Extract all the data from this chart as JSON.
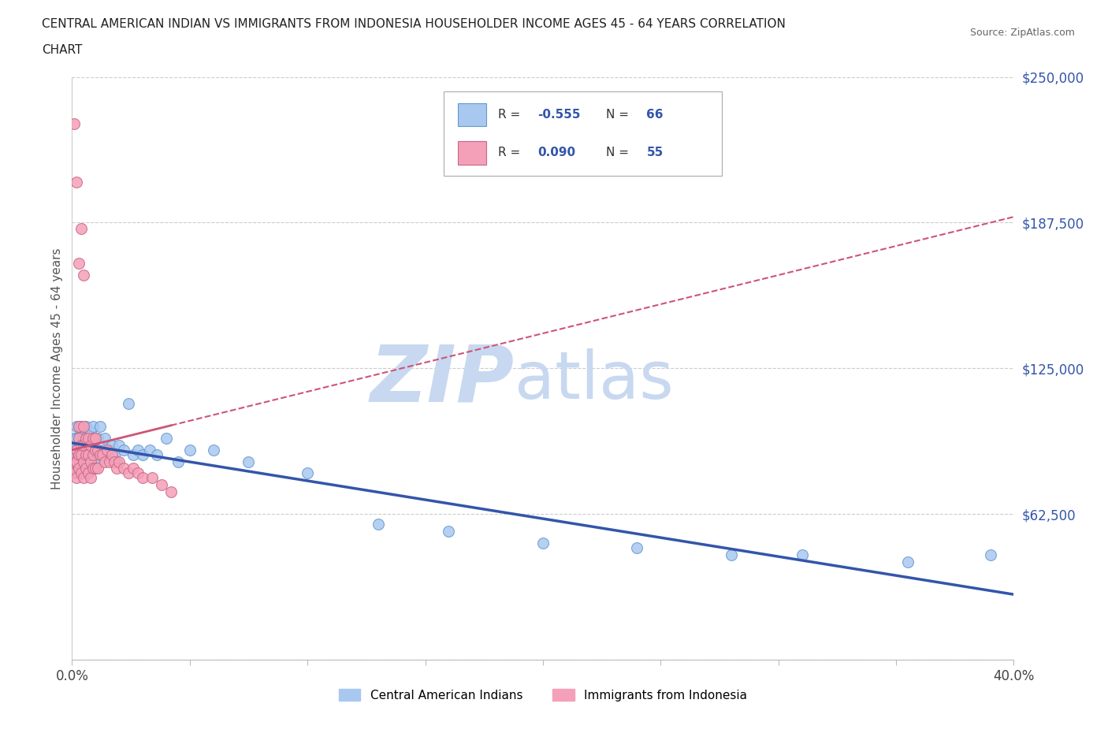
{
  "title_line1": "CENTRAL AMERICAN INDIAN VS IMMIGRANTS FROM INDONESIA HOUSEHOLDER INCOME AGES 45 - 64 YEARS CORRELATION",
  "title_line2": "CHART",
  "source": "Source: ZipAtlas.com",
  "ylabel": "Householder Income Ages 45 - 64 years",
  "xlim": [
    0.0,
    0.4
  ],
  "ylim": [
    0,
    250000
  ],
  "yticks": [
    0,
    62500,
    125000,
    187500,
    250000
  ],
  "ytick_labels": [
    "",
    "$62,500",
    "$125,000",
    "$187,500",
    "$250,000"
  ],
  "xticks": [
    0.0,
    0.05,
    0.1,
    0.15,
    0.2,
    0.25,
    0.3,
    0.35,
    0.4
  ],
  "xtick_labels": [
    "0.0%",
    "",
    "",
    "",
    "",
    "",
    "",
    "",
    "40.0%"
  ],
  "blue_R": -0.555,
  "blue_N": 66,
  "pink_R": 0.09,
  "pink_N": 55,
  "blue_color": "#a8c8f0",
  "blue_edge": "#6699cc",
  "pink_color": "#f4a0b8",
  "pink_edge": "#cc6688",
  "blue_line_color": "#3355aa",
  "pink_line_color": "#cc5577",
  "watermark_zip": "ZIP",
  "watermark_atlas": "atlas",
  "watermark_color_zip": "#c8d8f0",
  "watermark_color_atlas": "#c8d8f0",
  "legend_text_color": "#3355aa",
  "background_color": "#ffffff",
  "blue_scatter_x": [
    0.001,
    0.001,
    0.001,
    0.002,
    0.002,
    0.002,
    0.002,
    0.002,
    0.003,
    0.003,
    0.003,
    0.003,
    0.003,
    0.004,
    0.004,
    0.004,
    0.004,
    0.005,
    0.005,
    0.005,
    0.005,
    0.006,
    0.006,
    0.006,
    0.006,
    0.007,
    0.007,
    0.007,
    0.008,
    0.008,
    0.009,
    0.009,
    0.01,
    0.01,
    0.011,
    0.011,
    0.012,
    0.013,
    0.014,
    0.015,
    0.016,
    0.017,
    0.018,
    0.019,
    0.02,
    0.022,
    0.024,
    0.026,
    0.028,
    0.03,
    0.033,
    0.036,
    0.04,
    0.045,
    0.05,
    0.06,
    0.075,
    0.1,
    0.13,
    0.16,
    0.2,
    0.24,
    0.28,
    0.31,
    0.355,
    0.39
  ],
  "blue_scatter_y": [
    95000,
    90000,
    85000,
    100000,
    95000,
    90000,
    85000,
    80000,
    100000,
    95000,
    88000,
    85000,
    80000,
    100000,
    92000,
    88000,
    82000,
    95000,
    90000,
    85000,
    80000,
    100000,
    92000,
    88000,
    80000,
    95000,
    90000,
    82000,
    98000,
    88000,
    100000,
    85000,
    95000,
    82000,
    95000,
    85000,
    100000,
    90000,
    95000,
    88000,
    90000,
    92000,
    88000,
    85000,
    92000,
    90000,
    110000,
    88000,
    90000,
    88000,
    90000,
    88000,
    95000,
    85000,
    90000,
    90000,
    85000,
    80000,
    58000,
    55000,
    50000,
    48000,
    45000,
    45000,
    42000,
    45000
  ],
  "pink_scatter_x": [
    0.001,
    0.001,
    0.002,
    0.002,
    0.002,
    0.003,
    0.003,
    0.003,
    0.003,
    0.004,
    0.004,
    0.004,
    0.005,
    0.005,
    0.005,
    0.005,
    0.006,
    0.006,
    0.006,
    0.007,
    0.007,
    0.007,
    0.008,
    0.008,
    0.008,
    0.009,
    0.009,
    0.009,
    0.01,
    0.01,
    0.01,
    0.011,
    0.011,
    0.012,
    0.013,
    0.014,
    0.015,
    0.016,
    0.017,
    0.018,
    0.019,
    0.02,
    0.022,
    0.024,
    0.026,
    0.028,
    0.03,
    0.034,
    0.038,
    0.042,
    0.001,
    0.002,
    0.003,
    0.004,
    0.005
  ],
  "pink_scatter_y": [
    85000,
    80000,
    90000,
    85000,
    78000,
    100000,
    95000,
    88000,
    82000,
    92000,
    88000,
    80000,
    100000,
    92000,
    85000,
    78000,
    95000,
    88000,
    82000,
    95000,
    88000,
    80000,
    92000,
    85000,
    78000,
    95000,
    88000,
    82000,
    95000,
    90000,
    82000,
    90000,
    82000,
    88000,
    88000,
    85000,
    90000,
    85000,
    88000,
    85000,
    82000,
    85000,
    82000,
    80000,
    82000,
    80000,
    78000,
    78000,
    75000,
    72000,
    230000,
    205000,
    170000,
    185000,
    165000
  ]
}
